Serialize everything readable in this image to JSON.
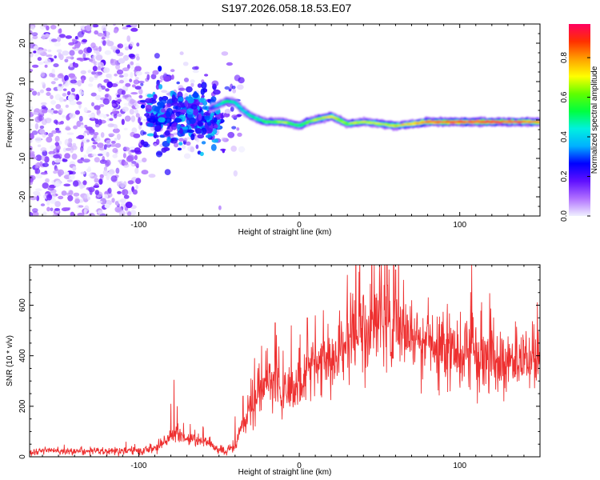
{
  "title": "S197.2026.058.18.53.E07",
  "chart_data": [
    {
      "type": "heatmap",
      "name": "spectrogram",
      "xlabel": "Height of straight line (km)",
      "ylabel": "Frequency (Hz)",
      "xlim": [
        -168,
        150
      ],
      "ylim": [
        -25,
        25
      ],
      "xticks": [
        -100,
        0,
        100
      ],
      "yticks": [
        -20,
        -10,
        0,
        10,
        20
      ],
      "xtick_labels": [
        "-100",
        "0",
        "100"
      ],
      "ytick_labels": [
        "-20",
        "-10",
        "0",
        "10",
        "20"
      ],
      "colorbar": {
        "label": "Normalized spectral amplitude",
        "range": [
          0,
          0.97
        ],
        "ticks": [
          0.0,
          0.2,
          0.4,
          0.6,
          0.8
        ],
        "tick_labels": [
          "0.0",
          "0.2",
          "0.4",
          "0.6",
          "0.8"
        ],
        "colormap": [
          "#f0f0ff",
          "#b070ff",
          "#6010ff",
          "#0000ff",
          "#00b0ff",
          "#00f0e0",
          "#00ff40",
          "#60ff00",
          "#ffff00",
          "#ffa000",
          "#ff3000",
          "#ff0060"
        ]
      },
      "ridge": {
        "x": [
          -55,
          -50,
          -45,
          -40,
          -35,
          -30,
          -25,
          -20,
          -15,
          -10,
          -5,
          0,
          5,
          10,
          15,
          20,
          25,
          30,
          40,
          50,
          60,
          70,
          80,
          100,
          120,
          150
        ],
        "frequency": [
          3,
          4,
          5,
          4.5,
          2.5,
          1,
          0,
          -0.5,
          -0.5,
          -0.5,
          -1,
          -1.5,
          -0.5,
          0,
          0.5,
          1,
          0,
          -1,
          -0.5,
          -1,
          -1.5,
          -1,
          -0.5,
          -0.5,
          -0.5,
          -0.5
        ],
        "amplitude": [
          0.3,
          0.45,
          0.55,
          0.5,
          0.45,
          0.5,
          0.55,
          0.6,
          0.65,
          0.7,
          0.6,
          0.55,
          0.65,
          0.7,
          0.75,
          0.8,
          0.7,
          0.65,
          0.7,
          0.7,
          0.75,
          0.8,
          0.95,
          0.95,
          0.95,
          0.9
        ]
      },
      "noise_region": {
        "x_range": [
          -168,
          -35
        ],
        "frequency_range": [
          -25,
          25
        ]
      }
    },
    {
      "type": "line",
      "name": "snr",
      "xlabel": "Height of straight line (km)",
      "ylabel": "SNR (10 * v/v)",
      "xlim": [
        -168,
        150
      ],
      "ylim": [
        0,
        760
      ],
      "xticks": [
        -100,
        0,
        100
      ],
      "yticks": [
        0,
        200,
        400,
        600
      ],
      "xtick_labels": [
        "-100",
        "0",
        "100"
      ],
      "ytick_labels": [
        "0",
        "200",
        "400",
        "600"
      ],
      "color": "#ee3030",
      "x": [
        -168,
        -140,
        -110,
        -100,
        -90,
        -85,
        -80,
        -75,
        -70,
        -65,
        -60,
        -55,
        -50,
        -45,
        -40,
        -35,
        -30,
        -25,
        -20,
        -15,
        -10,
        -5,
        0,
        5,
        10,
        15,
        20,
        25,
        30,
        35,
        40,
        45,
        50,
        55,
        60,
        65,
        70,
        75,
        80,
        85,
        90,
        95,
        100,
        105,
        110,
        115,
        120,
        125,
        130,
        135,
        140,
        145,
        150
      ],
      "mean": [
        22,
        22,
        22,
        24,
        35,
        55,
        80,
        95,
        70,
        70,
        60,
        45,
        25,
        25,
        40,
        130,
        180,
        240,
        290,
        300,
        240,
        270,
        300,
        330,
        340,
        350,
        380,
        420,
        460,
        480,
        490,
        520,
        540,
        530,
        530,
        510,
        490,
        460,
        450,
        440,
        430,
        420,
        410,
        400,
        400,
        390,
        385,
        380,
        380,
        375,
        375,
        375,
        375
      ],
      "spike_points": {
        "x": [
          -108,
          -80,
          -78,
          -76,
          -60,
          -40,
          -35,
          -30,
          -25,
          -20,
          -15,
          -10,
          -5,
          0,
          5,
          10,
          15,
          30,
          32,
          40,
          50,
          55,
          60,
          65,
          70,
          80,
          120
        ],
        "snr": [
          60,
          210,
          305,
          200,
          120,
          160,
          240,
          310,
          370,
          430,
          530,
          420,
          520,
          430,
          550,
          560,
          580,
          720,
          650,
          640,
          760,
          680,
          740,
          700,
          620,
          560,
          500
        ]
      }
    }
  ]
}
